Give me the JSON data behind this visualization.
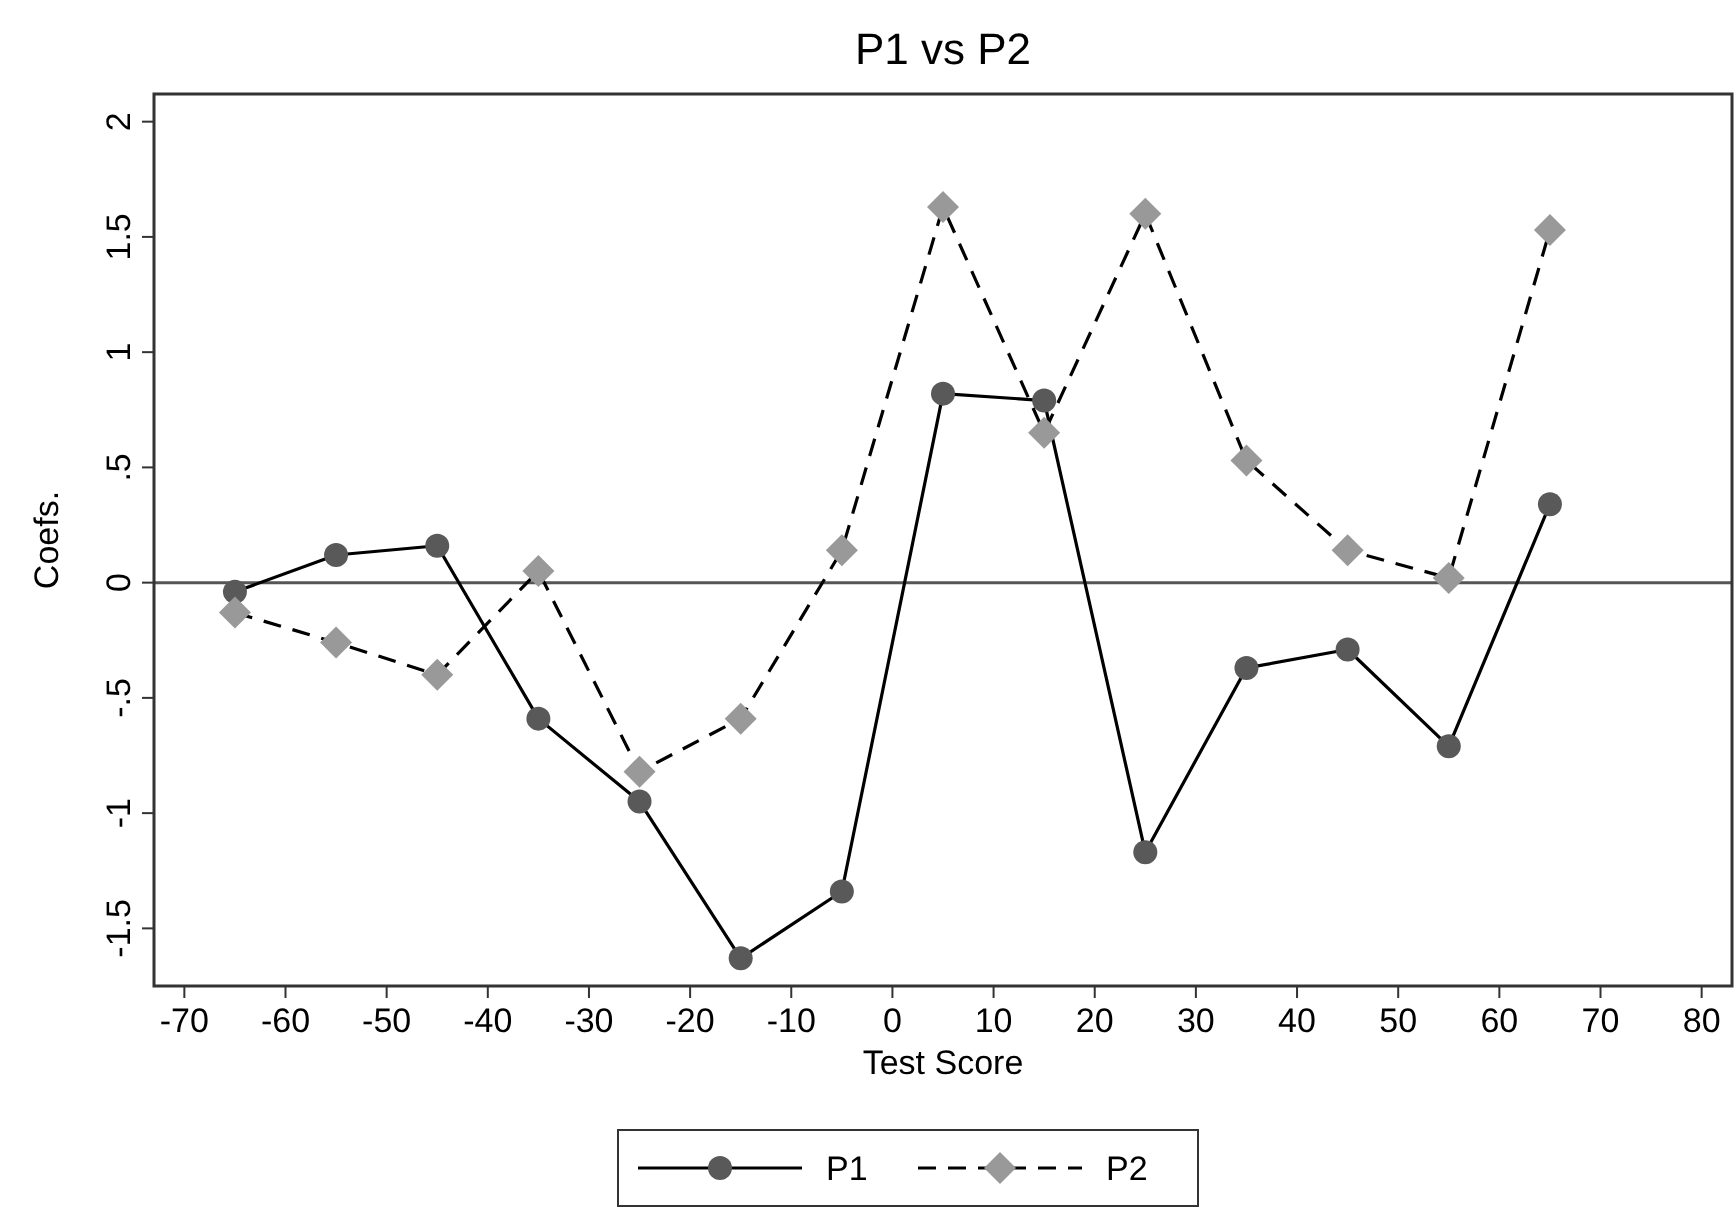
{
  "chart_data": {
    "type": "line",
    "title": "P1 vs P2",
    "xlabel": "Test Score",
    "ylabel": "Coefs.",
    "x": [
      -65,
      -55,
      -45,
      -35,
      -25,
      -15,
      -5,
      5,
      15,
      25,
      35,
      45,
      55,
      65
    ],
    "series": [
      {
        "name": "P1",
        "color": "#595959",
        "marker": "circle",
        "line_style": "solid",
        "values": [
          -0.04,
          0.12,
          0.16,
          -0.59,
          -0.95,
          -1.63,
          -1.34,
          0.82,
          0.79,
          -1.17,
          -0.37,
          -0.29,
          -0.71,
          0.34
        ]
      },
      {
        "name": "P2",
        "color": "#999999",
        "marker": "diamond",
        "line_style": "dashed",
        "values": [
          -0.13,
          -0.26,
          -0.4,
          0.05,
          -0.82,
          -0.59,
          0.14,
          1.63,
          0.65,
          1.6,
          0.53,
          0.14,
          0.02,
          1.53
        ]
      }
    ],
    "xlim": [
      -73,
      83
    ],
    "xticks": [
      -70,
      -60,
      -50,
      -40,
      -30,
      -20,
      -10,
      0,
      10,
      20,
      30,
      40,
      50,
      60,
      70,
      80
    ],
    "ylim": [
      -1.75,
      2.12
    ],
    "yticks": [
      {
        "value": -1.5,
        "label": "-1.5"
      },
      {
        "value": -1,
        "label": "-1"
      },
      {
        "value": -0.5,
        "label": "-.5"
      },
      0,
      {
        "value": 0.5,
        "label": ".5"
      },
      1,
      1.5,
      2
    ],
    "ref_lines": [
      {
        "axis": "y",
        "value": 0,
        "label": null,
        "color": "#555555"
      }
    ],
    "grid": false,
    "legend": "bottom"
  }
}
